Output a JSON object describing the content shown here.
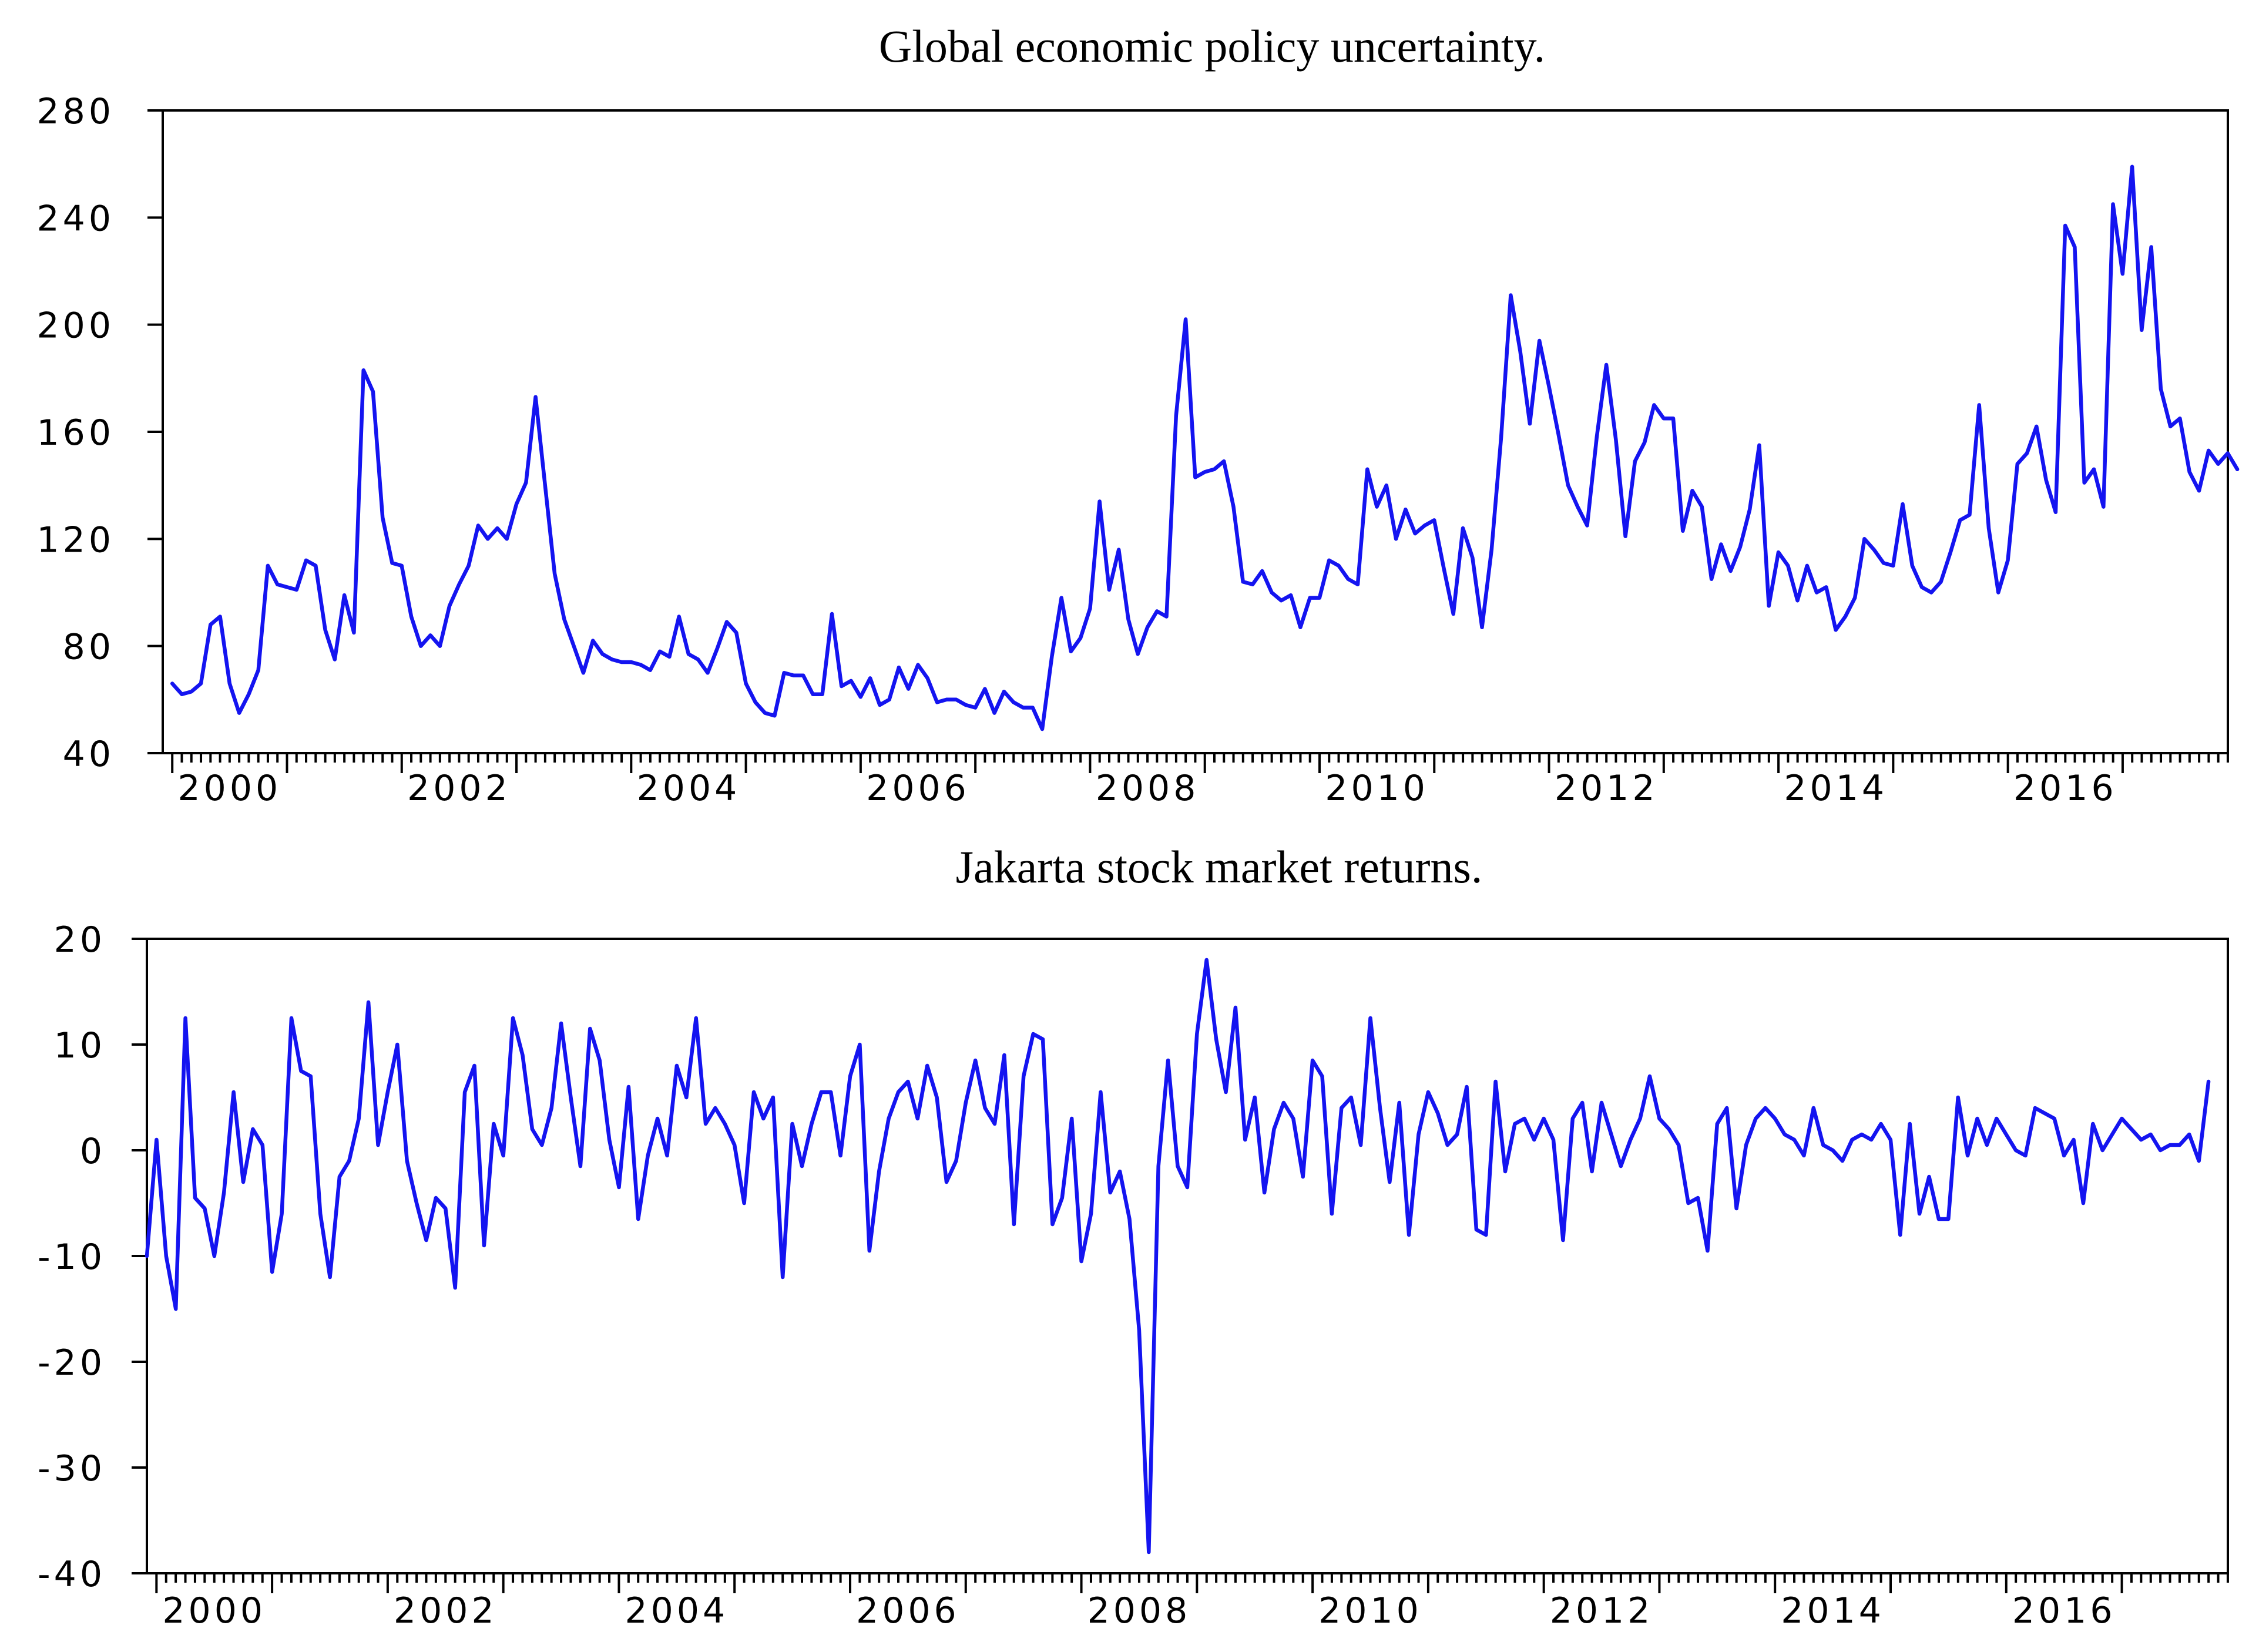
{
  "colors": {
    "series": "#1414f0",
    "axis": "#000000",
    "background": "#ffffff"
  },
  "chart_data": [
    {
      "type": "line",
      "title": "Global economic policy uncertainty.",
      "xlabel": "",
      "ylabel": "",
      "xlim": [
        1999.917,
        2017.917
      ],
      "ylim": [
        40,
        280
      ],
      "yticks": [
        40,
        80,
        120,
        160,
        200,
        240,
        280
      ],
      "ytick_labels": [
        "40",
        "80",
        "120",
        "160",
        "200",
        "240",
        "280"
      ],
      "xticks": [
        2000,
        2002,
        2004,
        2006,
        2008,
        2010,
        2012,
        2014,
        2016
      ],
      "xtick_labels": [
        "2000",
        "2002",
        "2004",
        "2006",
        "2008",
        "2010",
        "2012",
        "2014",
        "2016"
      ],
      "x_start": 2000.0,
      "x_step": 0.08333,
      "grid": false,
      "legend": "none",
      "series": [
        {
          "values": [
            66,
            62,
            63,
            66,
            88,
            91,
            66,
            55,
            62,
            71,
            110,
            103,
            102,
            101,
            112,
            110,
            86,
            75,
            99,
            85,
            183,
            175,
            128,
            111,
            110,
            91,
            80,
            84,
            80,
            95,
            103,
            110,
            125,
            120,
            124,
            120,
            133,
            141,
            173,
            140,
            107,
            90,
            80,
            70,
            82,
            77,
            75,
            74,
            74,
            73,
            71,
            78,
            76,
            91,
            77,
            75,
            70,
            79,
            89,
            85,
            66,
            59,
            55,
            54,
            70,
            69,
            69,
            62,
            62,
            92,
            65,
            67,
            61,
            68,
            58,
            60,
            72,
            64,
            73,
            68,
            59,
            60,
            60,
            58,
            57,
            64,
            55,
            63,
            59,
            57,
            57,
            49,
            76,
            98,
            78,
            83,
            94,
            134,
            101,
            116,
            90,
            77,
            87,
            93,
            91,
            166,
            202,
            143,
            145,
            146,
            149,
            132,
            104,
            103,
            108,
            100,
            97,
            99,
            87,
            98,
            98,
            112,
            110,
            105,
            103,
            146,
            132,
            140,
            120,
            131,
            122,
            125,
            127,
            109,
            92,
            124,
            113,
            87,
            116,
            158,
            211,
            190,
            163,
            194,
            177,
            159,
            140,
            132,
            125,
            158,
            185,
            157,
            121,
            149,
            156,
            170,
            165,
            165,
            123,
            138,
            132,
            105,
            118,
            108,
            117,
            131,
            155,
            95,
            115,
            110,
            97,
            110,
            100,
            102,
            86,
            91,
            98,
            120,
            116,
            111,
            110,
            133,
            110,
            102,
            100,
            104,
            115,
            127,
            129,
            170,
            124,
            100,
            112,
            148,
            152,
            162,
            142,
            130,
            237,
            229,
            141,
            146,
            132,
            245,
            219,
            259,
            198,
            229,
            176,
            162,
            165,
            145,
            138,
            153,
            148,
            152,
            146
          ]
        }
      ]
    },
    {
      "type": "line",
      "title": "Jakarta stock market returns.",
      "xlabel": "",
      "ylabel": "",
      "xlim": [
        1999.917,
        2017.917
      ],
      "ylim": [
        -40,
        20
      ],
      "yticks": [
        -40,
        -30,
        -20,
        -10,
        0,
        10,
        20
      ],
      "ytick_labels": [
        "-40",
        "-30",
        "-20",
        "-10",
        "0",
        "10",
        "20"
      ],
      "xticks": [
        2000,
        2002,
        2004,
        2006,
        2008,
        2010,
        2012,
        2014,
        2016
      ],
      "xtick_labels": [
        "2000",
        "2002",
        "2004",
        "2006",
        "2008",
        "2010",
        "2012",
        "2014",
        "2016"
      ],
      "x_start": 1999.917,
      "x_step": 0.08333,
      "grid": false,
      "legend": "none",
      "series": [
        {
          "values": [
            -10,
            1,
            -10,
            -15,
            12.5,
            -4.5,
            -5.5,
            -10,
            -4,
            5.5,
            -3,
            2,
            0.5,
            -11.5,
            -6,
            12.5,
            7.5,
            7,
            -6,
            -12,
            -2.5,
            -1,
            3,
            14,
            0.5,
            5.5,
            10,
            -1,
            -5,
            -8.5,
            -4.5,
            -5.5,
            -13,
            5.5,
            8,
            -9,
            2.5,
            -0.5,
            12.5,
            9,
            2,
            0.5,
            4,
            12,
            5,
            -1.5,
            11.5,
            8.5,
            1,
            -3.5,
            6,
            -6.5,
            -0.5,
            3,
            -0.5,
            8,
            5,
            12.5,
            2.5,
            4,
            2.5,
            0.5,
            -5,
            5.5,
            3,
            5,
            -12,
            2.5,
            -1.5,
            2.5,
            5.5,
            5.5,
            -0.5,
            7,
            10,
            -9.5,
            -2,
            3,
            5.5,
            6.5,
            3,
            8,
            5,
            -3,
            -1,
            4.5,
            8.5,
            4,
            2.5,
            9,
            -7,
            7,
            11,
            10.5,
            -7,
            -4.5,
            3,
            -10.5,
            -6,
            5.5,
            -4,
            -2,
            -6.5,
            -17,
            -38,
            -1.5,
            8.5,
            -1.5,
            -3.5,
            11,
            18,
            10.5,
            5.5,
            13.5,
            1,
            5,
            -4,
            2,
            4.5,
            3,
            -2.5,
            8.5,
            7,
            -6,
            4,
            5,
            0.5,
            12.5,
            4,
            -3,
            4.5,
            -8,
            1.5,
            5.5,
            3.5,
            0.5,
            1.5,
            6,
            -7.5,
            -8,
            6.5,
            -2,
            2.5,
            3,
            1,
            3,
            1,
            -8.5,
            3,
            4.5,
            -2,
            4.5,
            1.5,
            -1.5,
            1,
            3,
            7,
            3,
            2,
            0.5,
            -5,
            -4.5,
            -9.5,
            2.5,
            4,
            -5.5,
            0.5,
            3,
            4,
            3,
            1.5,
            1,
            -0.5,
            4,
            0.5,
            0,
            -1,
            1,
            1.5,
            1,
            2.5,
            1,
            -8,
            2.5,
            -6,
            -2.5,
            -6.5,
            -6.5,
            5,
            -0.5,
            3,
            0.5,
            3,
            1.5,
            0,
            -0.5,
            4,
            3.5,
            3,
            -0.5,
            1,
            -5,
            2.5,
            0,
            1.5,
            3,
            2,
            1,
            1.5,
            0,
            0.5,
            0.5,
            1.5,
            -1,
            6.5
          ]
        }
      ]
    }
  ]
}
